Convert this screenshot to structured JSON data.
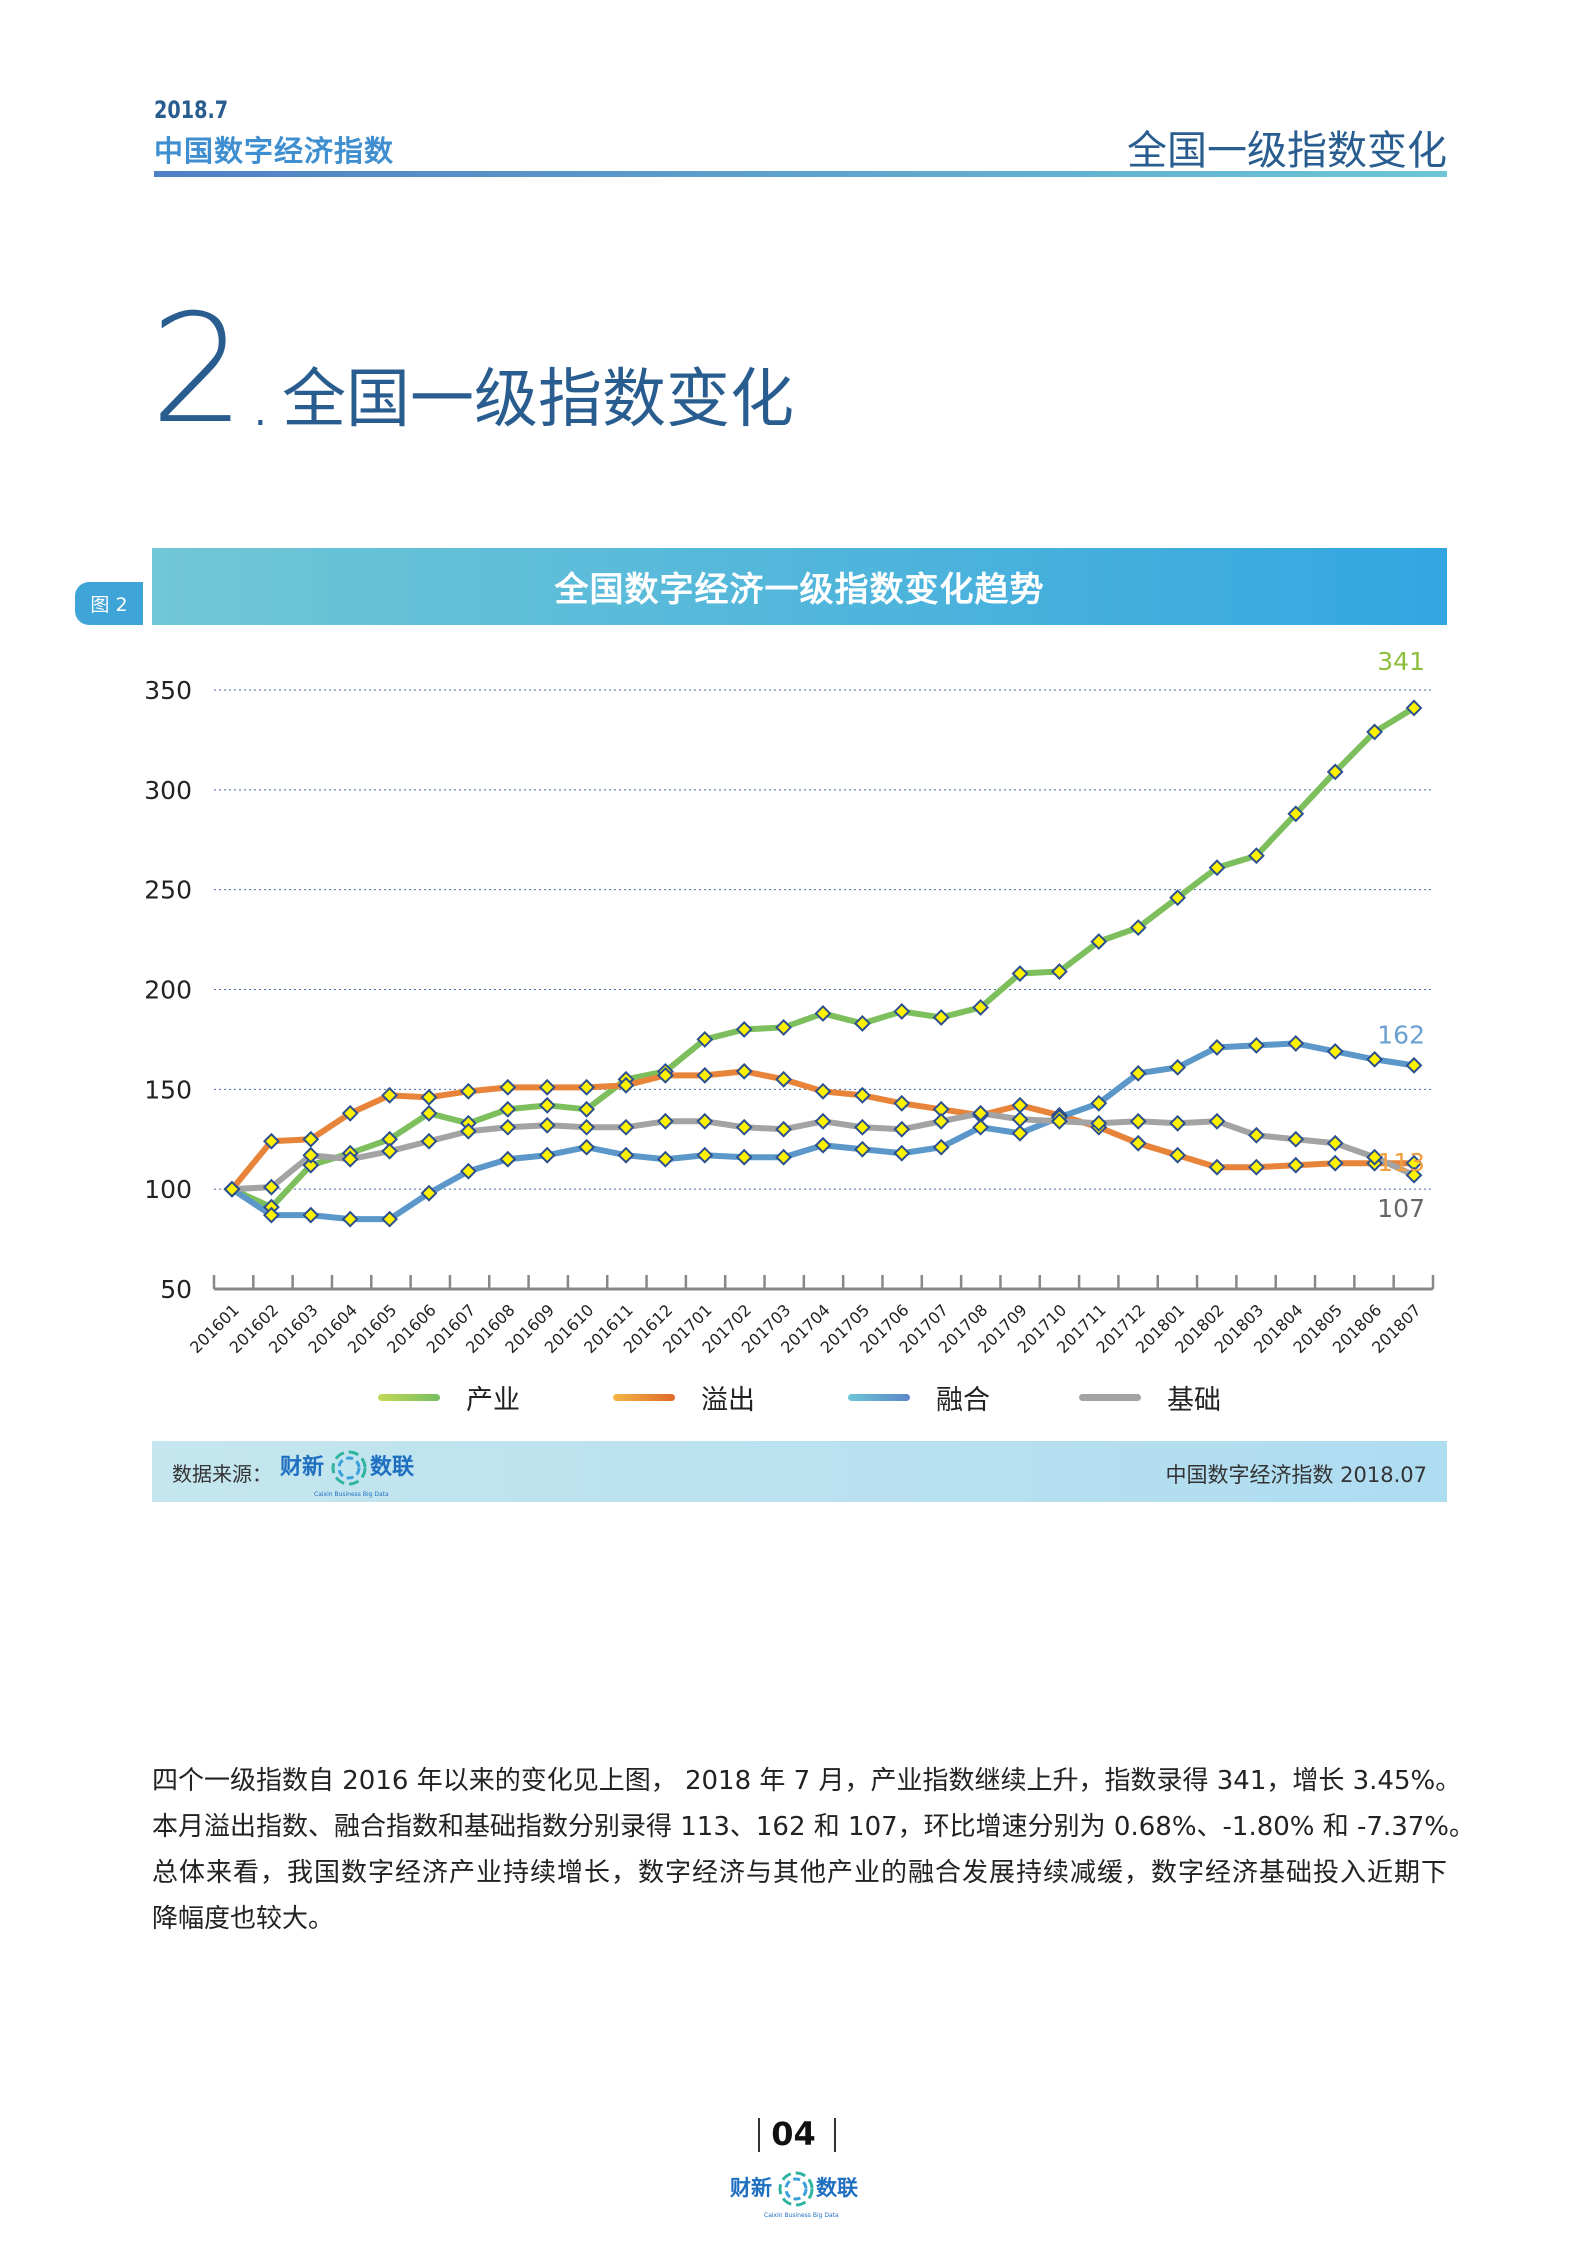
{
  "header": {
    "date": "2018.7",
    "publication": "中国数字经济指数",
    "section": "全国一级指数变化"
  },
  "section_heading": {
    "number": "2",
    "dot": ".",
    "title": "全国一级指数变化"
  },
  "figure": {
    "badge": "图 2",
    "title": "全国数字经济一级指数变化趋势"
  },
  "chart_data": {
    "type": "line",
    "title": "全国数字经济一级指数变化趋势",
    "xlabel": "",
    "ylabel": "",
    "ylim": [
      50,
      350
    ],
    "yticks": [
      50,
      100,
      150,
      200,
      250,
      300,
      350
    ],
    "grid": true,
    "legend_position": "bottom",
    "x": [
      "201601",
      "201602",
      "201603",
      "201604",
      "201605",
      "201606",
      "201607",
      "201608",
      "201609",
      "201610",
      "201611",
      "201612",
      "201701",
      "201702",
      "201703",
      "201704",
      "201705",
      "201706",
      "201707",
      "201708",
      "201709",
      "201710",
      "201711",
      "201712",
      "201801",
      "201802",
      "201803",
      "201804",
      "201805",
      "201806",
      "201807"
    ],
    "series": [
      {
        "name": "产业",
        "color": "#7cbf5c",
        "values": [
          100,
          91,
          112,
          118,
          125,
          138,
          133,
          140,
          142,
          140,
          155,
          159,
          175,
          180,
          181,
          188,
          183,
          189,
          186,
          191,
          208,
          209,
          224,
          231,
          246,
          261,
          267,
          288,
          309,
          329,
          341
        ],
        "end_label": "341",
        "label_color": "#8dbf3c"
      },
      {
        "name": "溢出",
        "color": "#e8843a",
        "values": [
          100,
          124,
          125,
          138,
          147,
          146,
          149,
          151,
          151,
          151,
          152,
          157,
          157,
          159,
          155,
          149,
          147,
          143,
          140,
          137,
          142,
          137,
          131,
          123,
          117,
          111,
          111,
          112,
          113,
          113,
          113
        ],
        "end_label": "113",
        "label_color": "#f0a040"
      },
      {
        "name": "融合",
        "color": "#5b97c9",
        "values": [
          100,
          87,
          87,
          85,
          85,
          98,
          109,
          115,
          117,
          121,
          117,
          115,
          117,
          116,
          116,
          122,
          120,
          118,
          121,
          131,
          128,
          136,
          143,
          158,
          161,
          171,
          172,
          173,
          169,
          165,
          162
        ],
        "end_label": "162",
        "label_color": "#6a9fd0"
      },
      {
        "name": "基础",
        "color": "#a3a3a3",
        "values": [
          100,
          101,
          117,
          115,
          119,
          124,
          129,
          131,
          132,
          131,
          131,
          134,
          134,
          131,
          130,
          134,
          131,
          130,
          134,
          138,
          135,
          134,
          133,
          134,
          133,
          134,
          127,
          125,
          123,
          116,
          107
        ],
        "end_label": "107",
        "label_color": "#666666"
      }
    ],
    "marker_color": "#fff200",
    "marker_edge": "#2b4f8f"
  },
  "legend": [
    {
      "label": "产业",
      "gradient": [
        "#c2d957",
        "#76bd60"
      ]
    },
    {
      "label": "溢出",
      "gradient": [
        "#f4b646",
        "#e0692a"
      ]
    },
    {
      "label": "融合",
      "gradient": [
        "#6ec5d6",
        "#5b86c8"
      ]
    },
    {
      "label": "基础",
      "gradient": [
        "#a7a7a7",
        "#9a9a9a"
      ]
    }
  ],
  "source": {
    "label": "数据来源：",
    "logo_text_left": "财新",
    "logo_text_right": "数联",
    "logo_sub": "Caixin Business Big Data",
    "right": "中国数字经济指数 2018.07"
  },
  "body": {
    "lines": [
      "四个一级指数自 2016 年以来的变化见上图， 2018 年 7 月，产业指数继续上升，指数录得 341，增长 3.45%。",
      "本月溢出指数、融合指数和基础指数分别录得 113、162 和 107，环比增速分别为 0.68%、-1.80% 和 -7.37%。",
      "总体来看，我国数字经济产业持续增长，数字经济与其他产业的融合发展持续减缓，数字经济基础投入近期下",
      "降幅度也较大。"
    ]
  },
  "footer": {
    "page": "04",
    "logo_text_left": "财新",
    "logo_text_right": "数联",
    "logo_sub": "Caixin Business Big Data"
  }
}
